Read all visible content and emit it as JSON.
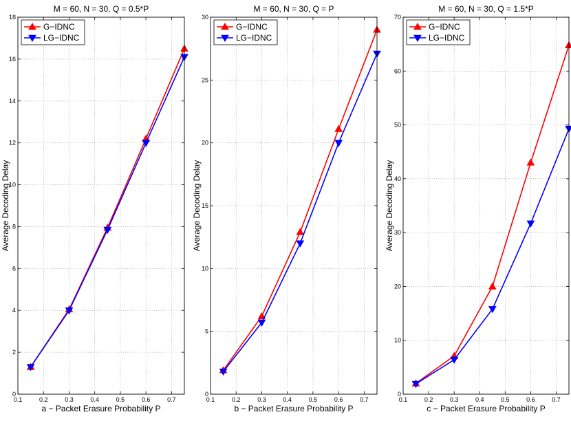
{
  "chart_data": [
    {
      "type": "line",
      "title": "M = 60, N = 30, Q = 0.5*P",
      "xlabel": "a − Packet Erasure Probability P",
      "ylabel": "Average Decoding Delay",
      "xlim": [
        0.1,
        0.75
      ],
      "ylim": [
        0,
        18
      ],
      "xticks": [
        0.1,
        0.2,
        0.3,
        0.4,
        0.5,
        0.6,
        0.7
      ],
      "yticks": [
        0,
        2,
        4,
        6,
        8,
        10,
        12,
        14,
        16,
        18
      ],
      "x": [
        0.15,
        0.3,
        0.45,
        0.6,
        0.75
      ],
      "series": [
        {
          "name": "G−IDNC",
          "color": "#ff0000",
          "marker": "triangle-up",
          "values": [
            1.3,
            4.05,
            7.95,
            12.2,
            16.5
          ]
        },
        {
          "name": "LG−IDNC",
          "color": "#0000ff",
          "marker": "triangle-down",
          "values": [
            1.3,
            4.0,
            7.85,
            12.0,
            16.1
          ]
        }
      ]
    },
    {
      "type": "line",
      "title": "M = 60, N = 30, Q = P",
      "xlabel": "b − Packet Erasure Probability P",
      "ylabel": "Average Decoding Delay",
      "xlim": [
        0.1,
        0.75
      ],
      "ylim": [
        0,
        30
      ],
      "xticks": [
        0.1,
        0.2,
        0.3,
        0.4,
        0.5,
        0.6,
        0.7
      ],
      "yticks": [
        0,
        5,
        10,
        15,
        20,
        25,
        30
      ],
      "x": [
        0.15,
        0.3,
        0.45,
        0.6,
        0.75
      ],
      "series": [
        {
          "name": "G−IDNC",
          "color": "#ff0000",
          "marker": "triangle-up",
          "values": [
            1.9,
            6.2,
            12.9,
            21.1,
            29.0
          ]
        },
        {
          "name": "LG−IDNC",
          "color": "#0000ff",
          "marker": "triangle-down",
          "values": [
            1.8,
            5.7,
            12.0,
            20.0,
            27.1
          ]
        }
      ]
    },
    {
      "type": "line",
      "title": "M = 60, N = 30, Q = 1.5*P",
      "xlabel": "c − Packet Erasure Probability P",
      "ylabel": "Average Decoding Delay",
      "xlim": [
        0.1,
        0.75
      ],
      "ylim": [
        0,
        70
      ],
      "xticks": [
        0.1,
        0.2,
        0.3,
        0.4,
        0.5,
        0.6,
        0.7
      ],
      "yticks": [
        0,
        10,
        20,
        30,
        40,
        50,
        60,
        70
      ],
      "x": [
        0.15,
        0.3,
        0.45,
        0.6,
        0.75
      ],
      "series": [
        {
          "name": "G−IDNC",
          "color": "#ff0000",
          "marker": "triangle-up",
          "values": [
            2.0,
            7.1,
            20.0,
            43.0,
            64.8
          ]
        },
        {
          "name": "LG−IDNC",
          "color": "#0000ff",
          "marker": "triangle-down",
          "values": [
            1.9,
            6.4,
            15.8,
            31.7,
            49.3
          ]
        }
      ]
    }
  ]
}
